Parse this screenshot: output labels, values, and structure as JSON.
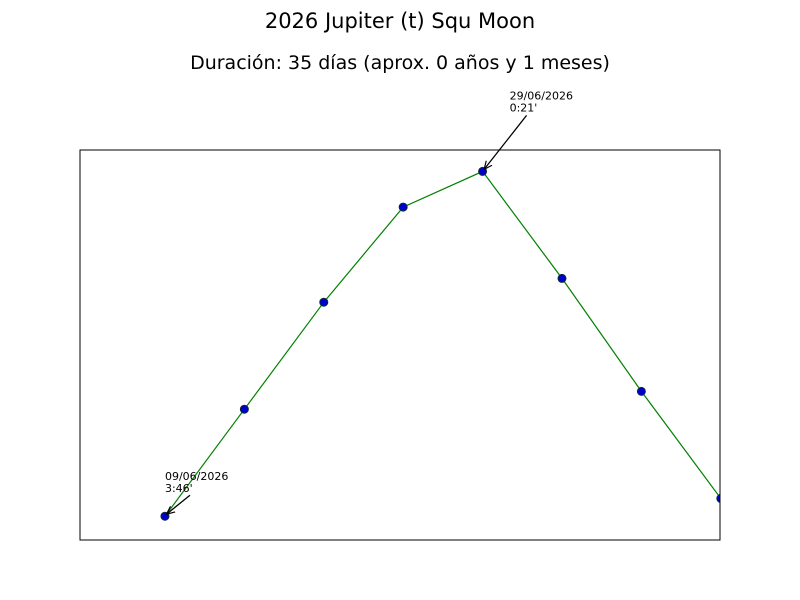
{
  "chart_data": {
    "type": "line",
    "title": "2026 Jupiter (t) Squ Moon",
    "subtitle": "Duración: 35 días (aprox. 0 años y 1 meses)",
    "xlabel": "",
    "ylabel": "",
    "grid": false,
    "line_color": "#008000",
    "marker_color": "#0000cc",
    "series": [
      {
        "x": [
          0,
          1,
          2,
          3,
          4,
          5,
          6,
          7
        ],
        "y": [
          0.2,
          1.1,
          2.0,
          2.8,
          3.1,
          2.2,
          1.25,
          0.35
        ]
      }
    ],
    "xlim": [
      -1.07,
      6.99
    ],
    "ylim": [
      0,
      3.28
    ],
    "annotations": [
      {
        "point_index": 0,
        "lines": [
          "09/06/2026",
          "3:46'"
        ]
      },
      {
        "point_index": 4,
        "lines": [
          "29/06/2026",
          "0:21'"
        ]
      }
    ]
  }
}
